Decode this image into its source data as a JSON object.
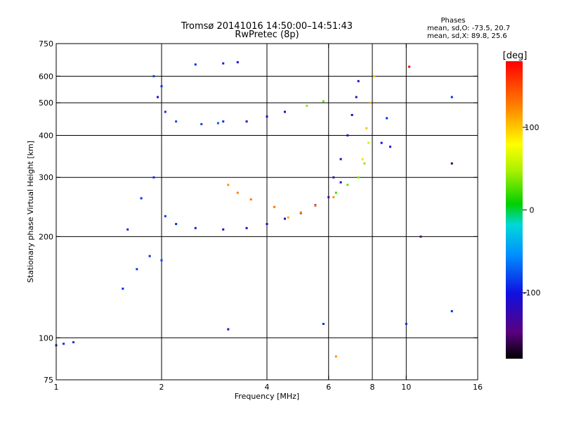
{
  "chart_data": {
    "type": "scatter",
    "title": "Tromsø 20141016 14:50:00–14:51:43",
    "subtitle": "RwPretec (8p)",
    "stats": {
      "heading": "Phases",
      "line1": "mean, sd,O: -73.5, 20.7",
      "line2": "mean, sd,X:  89.8, 25.6"
    },
    "xlabel": "Frequency [MHz]",
    "ylabel": "Stationary phase Virtual Height [km]",
    "x_scale": "log",
    "y_scale": "log",
    "xlim": [
      1,
      16
    ],
    "ylim": [
      75,
      750
    ],
    "x_ticks": [
      1,
      2,
      4,
      6,
      8,
      10,
      16
    ],
    "x_tick_labels": [
      "1",
      "2",
      "4",
      "6",
      "8",
      "10",
      "16"
    ],
    "y_ticks": [
      75,
      100,
      200,
      300,
      400,
      500,
      600,
      750
    ],
    "y_tick_labels": [
      "75",
      "100",
      "200",
      "300",
      "400",
      "500",
      "600",
      "750"
    ],
    "x_grid": [
      2,
      4,
      6,
      8,
      10
    ],
    "y_grid": [
      100,
      200,
      300,
      400,
      500,
      600
    ],
    "grid": true,
    "colorbar": {
      "label": "[deg]",
      "range": [
        -180,
        180
      ],
      "ticks": [
        100,
        0,
        -100
      ],
      "tick_labels": [
        "100",
        "0",
        "-100"
      ]
    },
    "series": [
      {
        "values": [
          [
            1.0,
            95,
            -90
          ],
          [
            1.05,
            96,
            -90
          ],
          [
            1.12,
            97,
            -90
          ]
        ]
      },
      {
        "values": [
          [
            1.55,
            140,
            -90
          ],
          [
            1.7,
            160,
            -85
          ],
          [
            1.85,
            175,
            -90
          ],
          [
            2.0,
            170,
            -85
          ],
          [
            1.6,
            210,
            -90
          ],
          [
            1.75,
            260,
            -90
          ],
          [
            1.9,
            300,
            -90
          ],
          [
            2.05,
            230,
            -85
          ]
        ]
      },
      {
        "values": [
          [
            2.2,
            218,
            -90
          ],
          [
            2.5,
            212,
            -95
          ],
          [
            3.0,
            210,
            -100
          ],
          [
            3.5,
            212,
            -105
          ],
          [
            4.0,
            218,
            -110
          ],
          [
            4.5,
            226,
            -115
          ],
          [
            5.0,
            235,
            -120
          ],
          [
            5.5,
            248,
            -125
          ],
          [
            6.0,
            262,
            -130
          ],
          [
            6.5,
            290,
            -120
          ]
        ]
      },
      {
        "values": [
          [
            4.6,
            228,
            110
          ],
          [
            5.0,
            236,
            120
          ],
          [
            5.5,
            247,
            130
          ],
          [
            6.2,
            262,
            120
          ]
        ]
      },
      {
        "values": [
          [
            6.3,
            270,
            20
          ],
          [
            6.8,
            285,
            30
          ],
          [
            7.3,
            300,
            40
          ],
          [
            7.6,
            330,
            40
          ],
          [
            7.8,
            380,
            60
          ]
        ]
      },
      {
        "values": [
          [
            3.1,
            285,
            120
          ],
          [
            3.3,
            270,
            125
          ],
          [
            3.6,
            258,
            130
          ],
          [
            4.2,
            245,
            130
          ]
        ]
      },
      {
        "values": [
          [
            2.2,
            440,
            -80
          ],
          [
            2.6,
            432,
            -80
          ],
          [
            2.9,
            435,
            -75
          ],
          [
            3.0,
            440,
            -90
          ],
          [
            3.5,
            440,
            -110
          ],
          [
            4.0,
            455,
            -110
          ],
          [
            4.5,
            470,
            -110
          ],
          [
            5.2,
            490,
            40
          ],
          [
            5.8,
            505,
            30
          ]
        ]
      },
      {
        "values": [
          [
            6.2,
            300,
            -130
          ],
          [
            6.5,
            340,
            -120
          ],
          [
            6.8,
            400,
            -120
          ],
          [
            7.0,
            460,
            -115
          ],
          [
            7.2,
            520,
            -120
          ],
          [
            7.3,
            580,
            -110
          ]
        ]
      },
      {
        "values": [
          [
            7.5,
            340,
            90
          ],
          [
            7.7,
            420,
            100
          ],
          [
            7.9,
            500,
            110
          ],
          [
            8.1,
            600,
            100
          ],
          [
            8.5,
            380,
            -100
          ],
          [
            9.0,
            370,
            -95
          ],
          [
            8.8,
            450,
            -90
          ]
        ]
      },
      {
        "values": [
          [
            2.5,
            650,
            -90
          ],
          [
            3.0,
            655,
            -95
          ],
          [
            3.3,
            660,
            -100
          ]
        ]
      },
      {
        "values": [
          [
            1.9,
            600,
            -85
          ],
          [
            2.0,
            560,
            -90
          ],
          [
            1.95,
            520,
            -120
          ],
          [
            2.05,
            470,
            -90
          ]
        ]
      },
      {
        "values": [
          [
            3.1,
            106,
            -110
          ],
          [
            5.8,
            110,
            -90
          ],
          [
            10.0,
            110,
            -90
          ],
          [
            11.0,
            200,
            -150
          ],
          [
            13.5,
            120,
            -90
          ],
          [
            6.3,
            88,
            120
          ],
          [
            10.2,
            640,
            180
          ],
          [
            13.5,
            330,
            -160
          ],
          [
            13.5,
            520,
            -90
          ]
        ]
      }
    ]
  }
}
